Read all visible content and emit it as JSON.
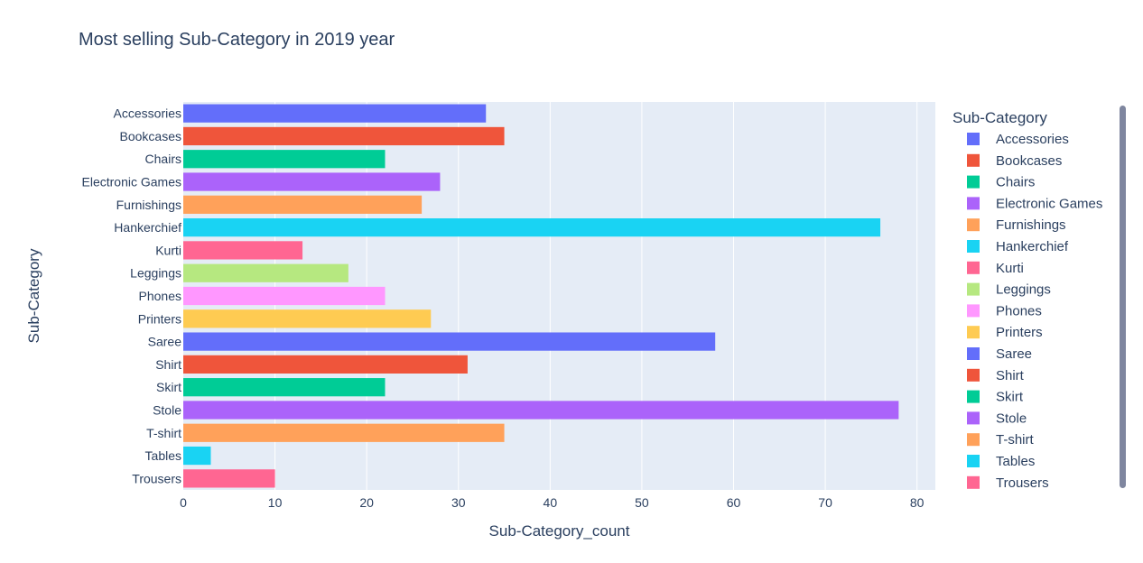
{
  "chart_data": {
    "type": "bar",
    "orientation": "horizontal",
    "title": "Most selling Sub-Category in 2019 year",
    "xlabel": "Sub-Category_count",
    "ylabel": "Sub-Category",
    "xlim": [
      0,
      82
    ],
    "xticks": [
      0,
      10,
      20,
      30,
      40,
      50,
      60,
      70,
      80
    ],
    "grid": true,
    "legend_title": "Sub-Category",
    "legend_position": "right",
    "categories": [
      "Accessories",
      "Bookcases",
      "Chairs",
      "Electronic Games",
      "Furnishings",
      "Hankerchief",
      "Kurti",
      "Leggings",
      "Phones",
      "Printers",
      "Saree",
      "Shirt",
      "Skirt",
      "Stole",
      "T-shirt",
      "Tables",
      "Trousers"
    ],
    "values": [
      33,
      35,
      22,
      28,
      26,
      76,
      13,
      18,
      22,
      27,
      58,
      31,
      22,
      78,
      35,
      3,
      10
    ],
    "colors": [
      "#636efa",
      "#ef553b",
      "#00cc96",
      "#ab63fa",
      "#ffa15a",
      "#19d3f3",
      "#ff6692",
      "#b6e880",
      "#ff97ff",
      "#fecb52",
      "#636efa",
      "#ef553b",
      "#00cc96",
      "#ab63fa",
      "#ffa15a",
      "#19d3f3",
      "#ff6692"
    ]
  }
}
